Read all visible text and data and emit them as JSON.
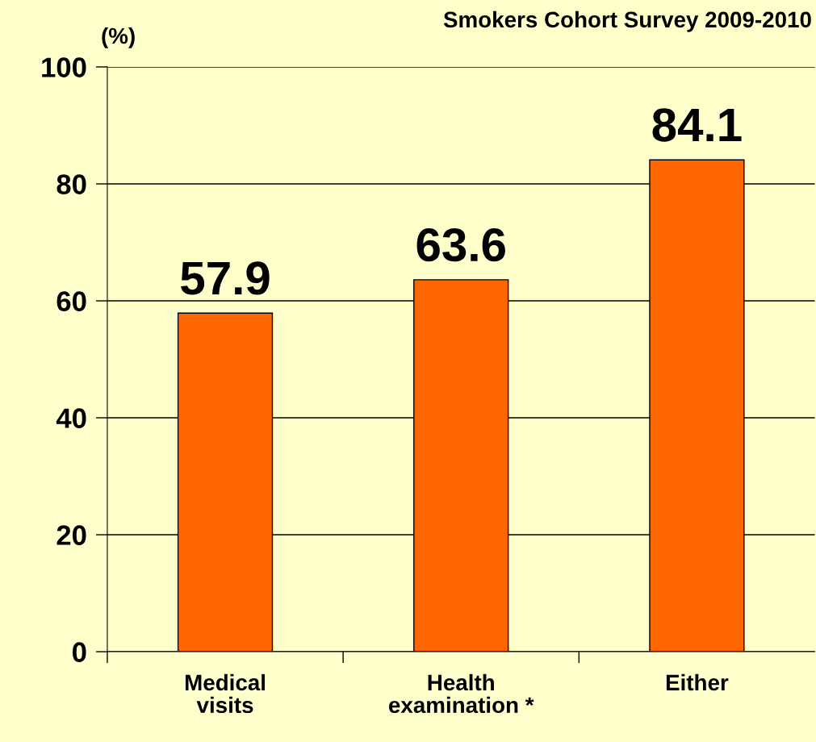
{
  "chart_data": {
    "type": "bar",
    "title": "Smokers Cohort Survey 2009-2010",
    "ylabel": "(%)",
    "categories": [
      "Medical\nvisits",
      "Health\nexamination *",
      "Either"
    ],
    "values": [
      57.9,
      63.6,
      84.1
    ],
    "color": "#ff6600",
    "ylim": [
      0,
      100
    ],
    "yticks": [
      0,
      20,
      40,
      60,
      80,
      100
    ],
    "grid": "y",
    "data_labels": true
  }
}
